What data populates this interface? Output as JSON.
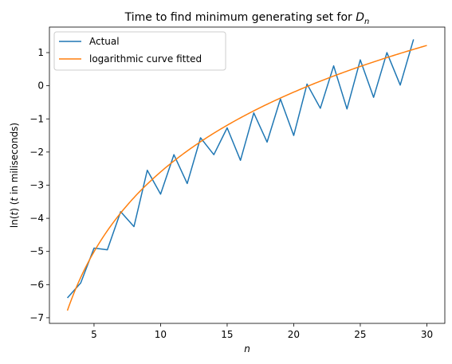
{
  "chart_data": {
    "type": "line",
    "title": "Time to find minimum generating set for",
    "title_math": "D",
    "title_math_sub": "n",
    "xlabel": "n",
    "ylabel_prefix": "ln(",
    "ylabel_t1": "t",
    "ylabel_mid": ") (",
    "ylabel_t2": "t",
    "ylabel_suffix": " in miliseconds)",
    "xlim": [
      1.65,
      31.35
    ],
    "ylim": [
      -7.17,
      1.77
    ],
    "xticks": [
      5,
      10,
      15,
      20,
      25,
      30
    ],
    "yticks": [
      -7,
      -6,
      -5,
      -4,
      -3,
      -2,
      -1,
      0,
      1
    ],
    "legend_position": "top-left",
    "series": [
      {
        "name": "Actual",
        "color": "#1f77b4",
        "x": [
          3,
          4,
          5,
          6,
          7,
          8,
          9,
          10,
          11,
          12,
          13,
          14,
          15,
          16,
          17,
          18,
          19,
          20,
          21,
          22,
          23,
          24,
          25,
          26,
          27,
          28,
          29
        ],
        "values": [
          -6.4,
          -5.95,
          -4.9,
          -4.95,
          -3.8,
          -4.25,
          -2.55,
          -3.27,
          -2.08,
          -2.95,
          -1.57,
          -2.08,
          -1.27,
          -2.25,
          -0.82,
          -1.7,
          -0.4,
          -1.5,
          0.05,
          -0.68,
          0.6,
          -0.7,
          0.78,
          -0.35,
          1.0,
          0.02,
          1.4
        ]
      },
      {
        "name": "logarithmic curve fitted",
        "color": "#ff7f0e",
        "fit": {
          "a": 3.474,
          "b": -10.6,
          "x_start": 3,
          "x_end": 30
        }
      }
    ]
  }
}
